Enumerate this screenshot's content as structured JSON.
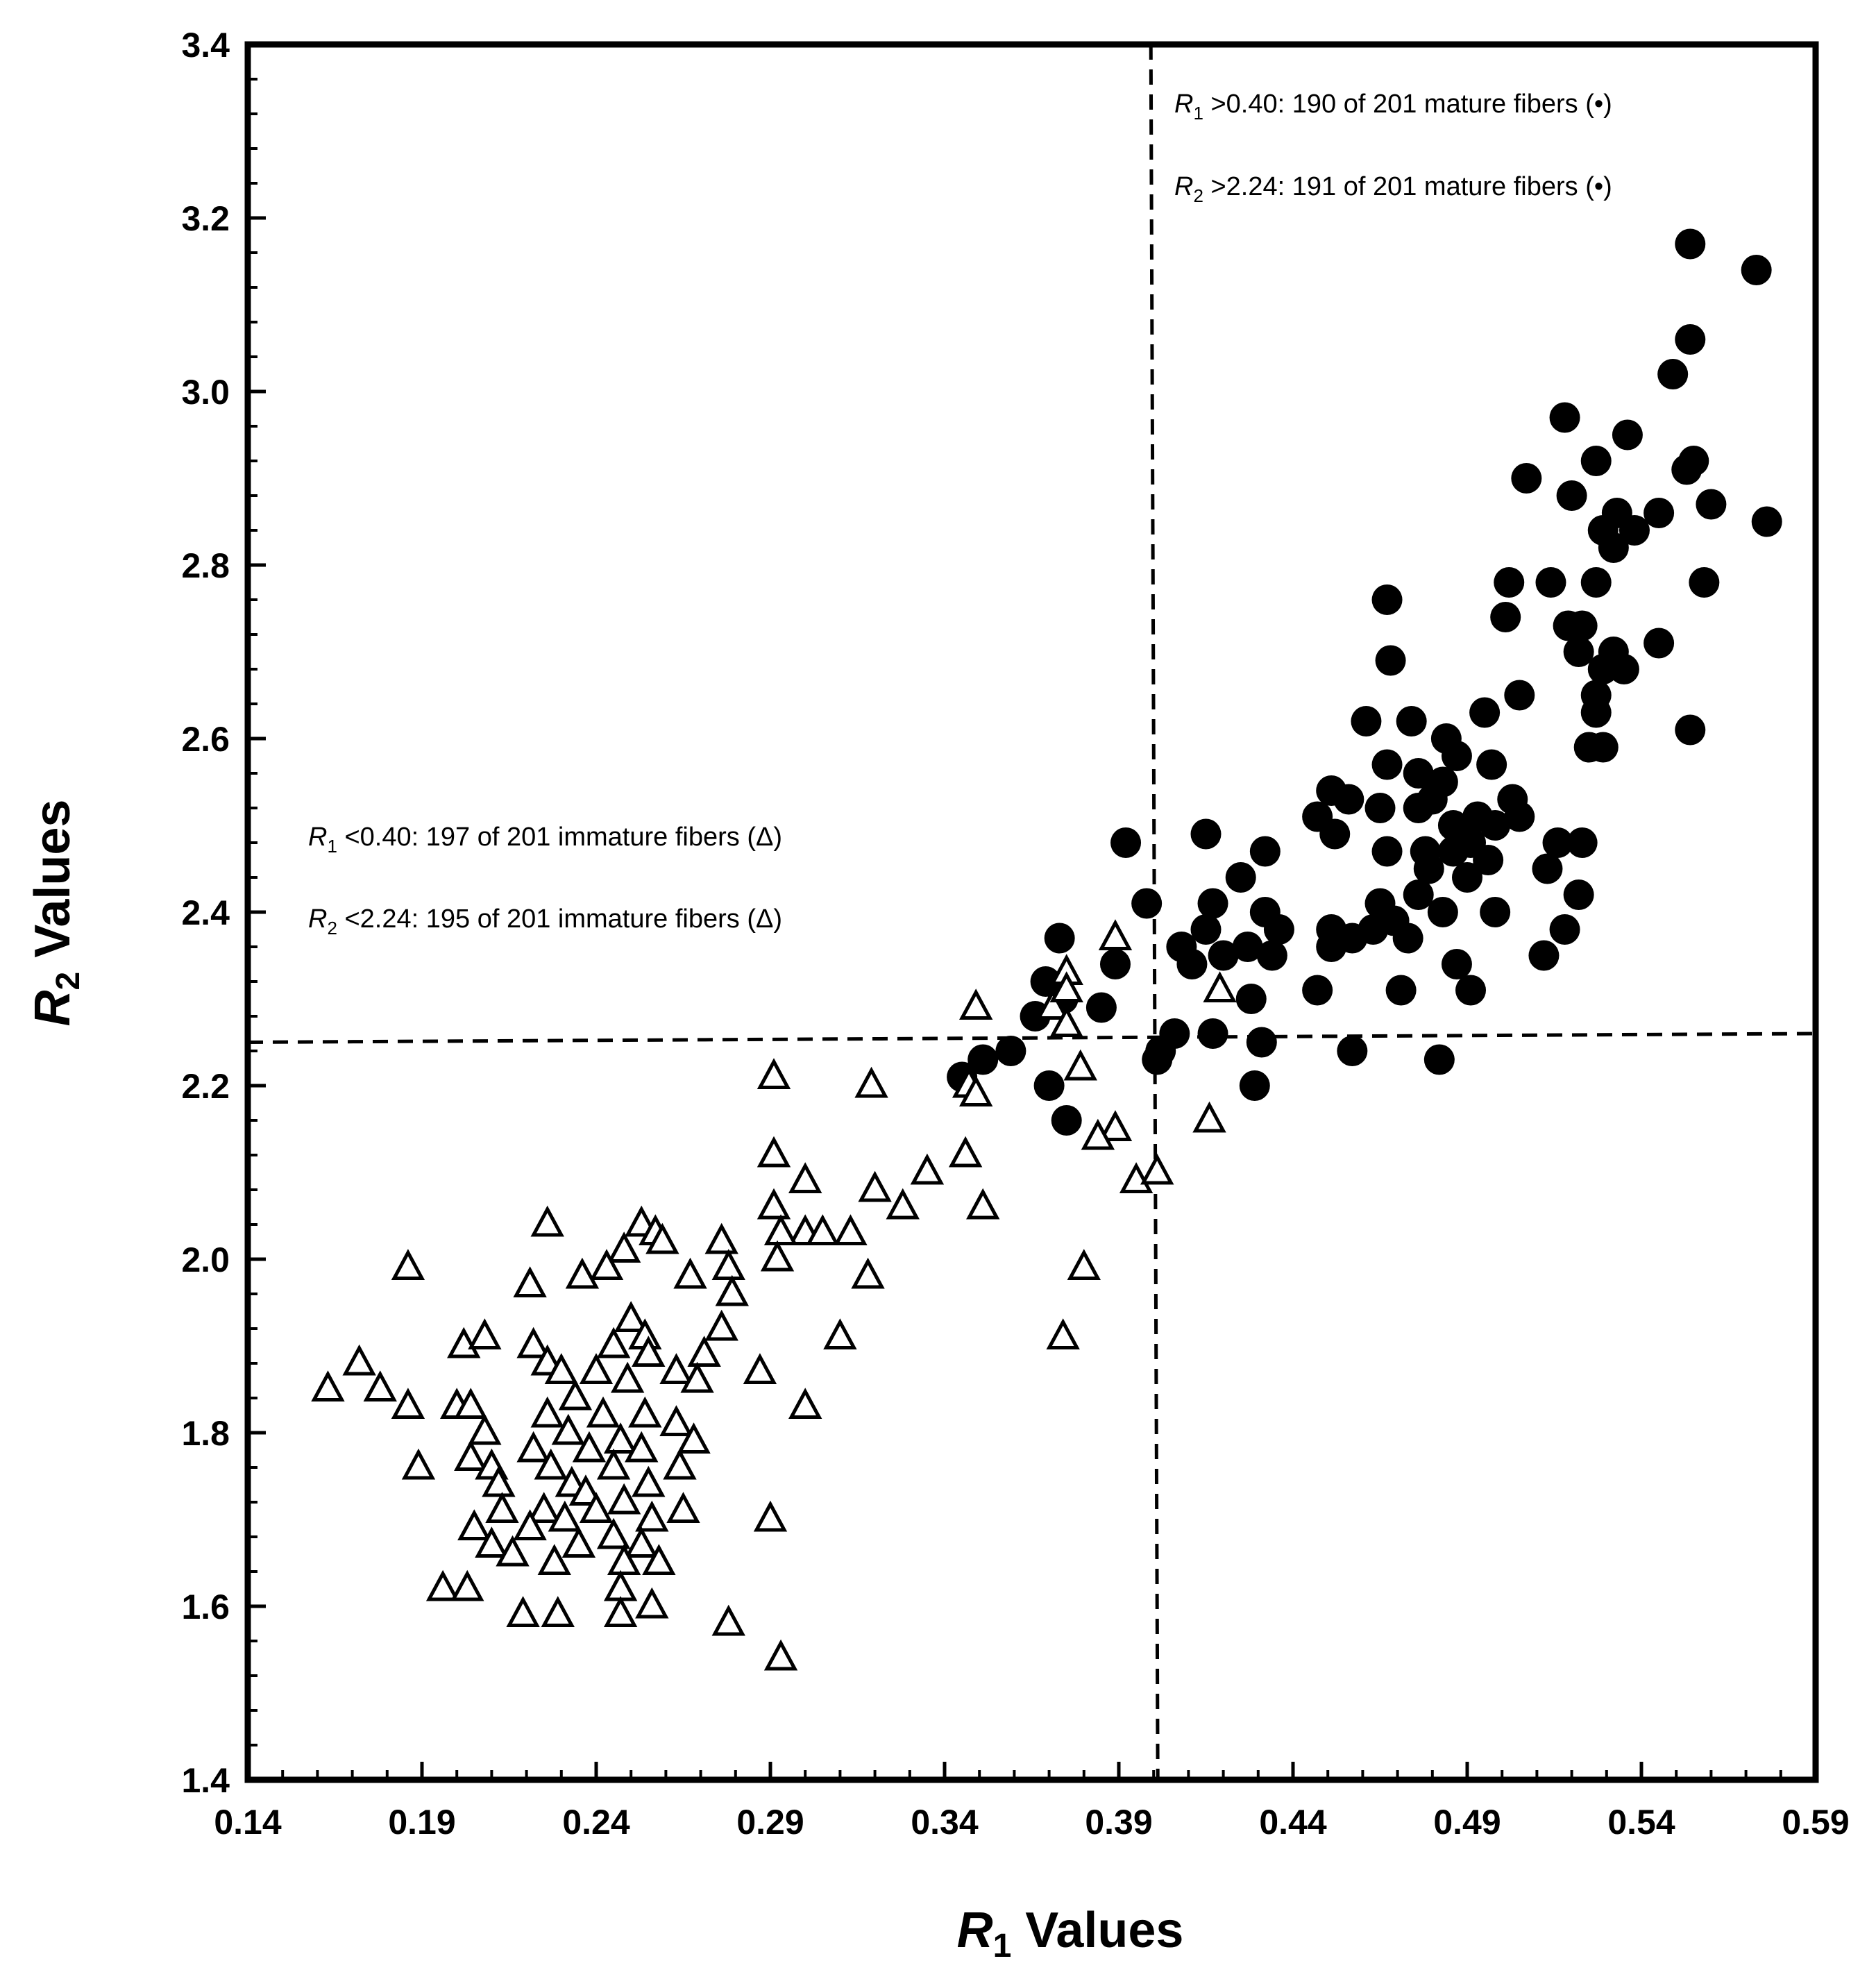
{
  "chart_data": {
    "type": "scatter",
    "title": "",
    "xlabel": {
      "var": "R",
      "sub": "1",
      "rest": " Values"
    },
    "ylabel": {
      "var": "R",
      "sub": "2",
      "rest": " Values"
    },
    "xlim": [
      0.14,
      0.59
    ],
    "ylim": [
      1.4,
      3.4
    ],
    "xticks": [
      "0.14",
      "0.19",
      "0.24",
      "0.29",
      "0.34",
      "0.39",
      "0.44",
      "0.49",
      "0.54",
      "0.59"
    ],
    "yticks": [
      "1.4",
      "1.6",
      "1.8",
      "2.0",
      "2.2",
      "2.4",
      "2.6",
      "2.8",
      "3.0",
      "3.2",
      "3.4"
    ],
    "thresholds": {
      "vertical": {
        "x": 0.4,
        "y_from": 1.4,
        "y_to": 3.4
      },
      "horizontal": {
        "x_from": 0.14,
        "x_to": 0.59,
        "y_start": 2.25,
        "y_end": 2.26
      }
    },
    "annotations": [
      {
        "var": "R",
        "sub": "1",
        "text": " >0.40: 190 of 201 mature fibers (•)",
        "pos": "top-right"
      },
      {
        "var": "R",
        "sub": "2",
        "text": " >2.24: 191 of 201 mature fibers (•)",
        "pos": "top-right"
      },
      {
        "var": "R",
        "sub": "1",
        "text": " <0.40: 197 of 201 immature fibers (Δ)",
        "pos": "middle-left"
      },
      {
        "var": "R",
        "sub": "2",
        "text": " <2.24: 195 of 201 immature fibers (Δ)",
        "pos": "middle-left"
      }
    ],
    "series": [
      {
        "name": "mature fibers",
        "marker": "filled-circle",
        "points": [
          [
            0.554,
            3.17
          ],
          [
            0.573,
            3.14
          ],
          [
            0.554,
            3.06
          ],
          [
            0.549,
            3.02
          ],
          [
            0.518,
            2.97
          ],
          [
            0.536,
            2.95
          ],
          [
            0.527,
            2.92
          ],
          [
            0.555,
            2.92
          ],
          [
            0.553,
            2.91
          ],
          [
            0.507,
            2.9
          ],
          [
            0.52,
            2.88
          ],
          [
            0.56,
            2.87
          ],
          [
            0.576,
            2.85
          ],
          [
            0.533,
            2.86
          ],
          [
            0.545,
            2.86
          ],
          [
            0.538,
            2.84
          ],
          [
            0.529,
            2.84
          ],
          [
            0.532,
            2.82
          ],
          [
            0.502,
            2.78
          ],
          [
            0.514,
            2.78
          ],
          [
            0.527,
            2.78
          ],
          [
            0.558,
            2.78
          ],
          [
            0.467,
            2.76
          ],
          [
            0.501,
            2.74
          ],
          [
            0.519,
            2.73
          ],
          [
            0.523,
            2.73
          ],
          [
            0.522,
            2.7
          ],
          [
            0.532,
            2.7
          ],
          [
            0.545,
            2.71
          ],
          [
            0.529,
            2.68
          ],
          [
            0.535,
            2.68
          ],
          [
            0.468,
            2.69
          ],
          [
            0.527,
            2.65
          ],
          [
            0.505,
            2.65
          ],
          [
            0.495,
            2.63
          ],
          [
            0.474,
            2.62
          ],
          [
            0.461,
            2.62
          ],
          [
            0.527,
            2.63
          ],
          [
            0.484,
            2.6
          ],
          [
            0.525,
            2.59
          ],
          [
            0.529,
            2.59
          ],
          [
            0.554,
            2.61
          ],
          [
            0.467,
            2.57
          ],
          [
            0.487,
            2.58
          ],
          [
            0.476,
            2.56
          ],
          [
            0.497,
            2.57
          ],
          [
            0.483,
            2.55
          ],
          [
            0.451,
            2.54
          ],
          [
            0.456,
            2.53
          ],
          [
            0.48,
            2.53
          ],
          [
            0.503,
            2.53
          ],
          [
            0.447,
            2.51
          ],
          [
            0.465,
            2.52
          ],
          [
            0.476,
            2.52
          ],
          [
            0.493,
            2.51
          ],
          [
            0.498,
            2.5
          ],
          [
            0.505,
            2.51
          ],
          [
            0.452,
            2.49
          ],
          [
            0.486,
            2.5
          ],
          [
            0.415,
            2.49
          ],
          [
            0.392,
            2.48
          ],
          [
            0.491,
            2.48
          ],
          [
            0.516,
            2.48
          ],
          [
            0.523,
            2.48
          ],
          [
            0.467,
            2.47
          ],
          [
            0.478,
            2.47
          ],
          [
            0.486,
            2.47
          ],
          [
            0.432,
            2.47
          ],
          [
            0.496,
            2.46
          ],
          [
            0.479,
            2.45
          ],
          [
            0.513,
            2.45
          ],
          [
            0.49,
            2.44
          ],
          [
            0.425,
            2.44
          ],
          [
            0.476,
            2.42
          ],
          [
            0.398,
            2.41
          ],
          [
            0.465,
            2.41
          ],
          [
            0.522,
            2.42
          ],
          [
            0.417,
            2.41
          ],
          [
            0.483,
            2.4
          ],
          [
            0.498,
            2.4
          ],
          [
            0.469,
            2.39
          ],
          [
            0.432,
            2.4
          ],
          [
            0.451,
            2.38
          ],
          [
            0.463,
            2.38
          ],
          [
            0.415,
            2.38
          ],
          [
            0.518,
            2.38
          ],
          [
            0.436,
            2.38
          ],
          [
            0.408,
            2.36
          ],
          [
            0.373,
            2.37
          ],
          [
            0.427,
            2.36
          ],
          [
            0.451,
            2.36
          ],
          [
            0.457,
            2.37
          ],
          [
            0.473,
            2.37
          ],
          [
            0.42,
            2.35
          ],
          [
            0.411,
            2.34
          ],
          [
            0.487,
            2.34
          ],
          [
            0.434,
            2.35
          ],
          [
            0.512,
            2.35
          ],
          [
            0.389,
            2.34
          ],
          [
            0.369,
            2.32
          ],
          [
            0.374,
            2.3
          ],
          [
            0.471,
            2.31
          ],
          [
            0.447,
            2.31
          ],
          [
            0.491,
            2.31
          ],
          [
            0.428,
            2.3
          ],
          [
            0.385,
            2.29
          ],
          [
            0.366,
            2.28
          ],
          [
            0.406,
            2.26
          ],
          [
            0.417,
            2.26
          ],
          [
            0.431,
            2.25
          ],
          [
            0.402,
            2.24
          ],
          [
            0.359,
            2.24
          ],
          [
            0.351,
            2.23
          ],
          [
            0.457,
            2.24
          ],
          [
            0.482,
            2.23
          ],
          [
            0.401,
            2.23
          ],
          [
            0.345,
            2.21
          ],
          [
            0.37,
            2.2
          ],
          [
            0.429,
            2.2
          ],
          [
            0.375,
            2.16
          ]
        ]
      },
      {
        "name": "immature fibers",
        "marker": "open-triangle",
        "points": [
          [
            0.389,
            2.37
          ],
          [
            0.375,
            2.33
          ],
          [
            0.371,
            2.29
          ],
          [
            0.375,
            2.31
          ],
          [
            0.349,
            2.29
          ],
          [
            0.419,
            2.31
          ],
          [
            0.375,
            2.27
          ],
          [
            0.379,
            2.22
          ],
          [
            0.347,
            2.2
          ],
          [
            0.349,
            2.19
          ],
          [
            0.291,
            2.21
          ],
          [
            0.319,
            2.2
          ],
          [
            0.416,
            2.16
          ],
          [
            0.389,
            2.15
          ],
          [
            0.384,
            2.14
          ],
          [
            0.346,
            2.12
          ],
          [
            0.291,
            2.12
          ],
          [
            0.335,
            2.1
          ],
          [
            0.3,
            2.09
          ],
          [
            0.32,
            2.08
          ],
          [
            0.395,
            2.09
          ],
          [
            0.401,
            2.1
          ],
          [
            0.291,
            2.06
          ],
          [
            0.328,
            2.06
          ],
          [
            0.351,
            2.06
          ],
          [
            0.226,
            2.04
          ],
          [
            0.253,
            2.04
          ],
          [
            0.257,
            2.03
          ],
          [
            0.3,
            2.03
          ],
          [
            0.305,
            2.03
          ],
          [
            0.313,
            2.03
          ],
          [
            0.293,
            2.03
          ],
          [
            0.276,
            2.02
          ],
          [
            0.259,
            2.02
          ],
          [
            0.248,
            2.01
          ],
          [
            0.243,
            1.99
          ],
          [
            0.292,
            2.0
          ],
          [
            0.278,
            1.99
          ],
          [
            0.38,
            1.99
          ],
          [
            0.186,
            1.99
          ],
          [
            0.236,
            1.98
          ],
          [
            0.267,
            1.98
          ],
          [
            0.318,
            1.98
          ],
          [
            0.221,
            1.97
          ],
          [
            0.279,
            1.96
          ],
          [
            0.25,
            1.93
          ],
          [
            0.276,
            1.92
          ],
          [
            0.202,
            1.9
          ],
          [
            0.208,
            1.91
          ],
          [
            0.222,
            1.9
          ],
          [
            0.254,
            1.91
          ],
          [
            0.31,
            1.91
          ],
          [
            0.374,
            1.91
          ],
          [
            0.245,
            1.9
          ],
          [
            0.226,
            1.88
          ],
          [
            0.24,
            1.87
          ],
          [
            0.255,
            1.89
          ],
          [
            0.271,
            1.89
          ],
          [
            0.172,
            1.88
          ],
          [
            0.23,
            1.87
          ],
          [
            0.263,
            1.87
          ],
          [
            0.287,
            1.87
          ],
          [
            0.269,
            1.86
          ],
          [
            0.249,
            1.86
          ],
          [
            0.163,
            1.85
          ],
          [
            0.178,
            1.85
          ],
          [
            0.234,
            1.84
          ],
          [
            0.3,
            1.83
          ],
          [
            0.2,
            1.83
          ],
          [
            0.204,
            1.83
          ],
          [
            0.186,
            1.83
          ],
          [
            0.226,
            1.82
          ],
          [
            0.242,
            1.82
          ],
          [
            0.254,
            1.82
          ],
          [
            0.263,
            1.81
          ],
          [
            0.208,
            1.8
          ],
          [
            0.232,
            1.8
          ],
          [
            0.247,
            1.79
          ],
          [
            0.268,
            1.79
          ],
          [
            0.222,
            1.78
          ],
          [
            0.238,
            1.78
          ],
          [
            0.253,
            1.78
          ],
          [
            0.204,
            1.77
          ],
          [
            0.21,
            1.76
          ],
          [
            0.189,
            1.76
          ],
          [
            0.227,
            1.76
          ],
          [
            0.245,
            1.76
          ],
          [
            0.264,
            1.76
          ],
          [
            0.233,
            1.74
          ],
          [
            0.212,
            1.74
          ],
          [
            0.255,
            1.74
          ],
          [
            0.237,
            1.73
          ],
          [
            0.248,
            1.72
          ],
          [
            0.225,
            1.71
          ],
          [
            0.213,
            1.71
          ],
          [
            0.24,
            1.71
          ],
          [
            0.256,
            1.7
          ],
          [
            0.29,
            1.7
          ],
          [
            0.265,
            1.71
          ],
          [
            0.231,
            1.7
          ],
          [
            0.205,
            1.69
          ],
          [
            0.221,
            1.69
          ],
          [
            0.245,
            1.68
          ],
          [
            0.21,
            1.67
          ],
          [
            0.235,
            1.67
          ],
          [
            0.253,
            1.67
          ],
          [
            0.216,
            1.66
          ],
          [
            0.228,
            1.65
          ],
          [
            0.248,
            1.65
          ],
          [
            0.258,
            1.65
          ],
          [
            0.196,
            1.62
          ],
          [
            0.203,
            1.62
          ],
          [
            0.247,
            1.62
          ],
          [
            0.256,
            1.6
          ],
          [
            0.219,
            1.59
          ],
          [
            0.229,
            1.59
          ],
          [
            0.247,
            1.59
          ],
          [
            0.278,
            1.58
          ],
          [
            0.293,
            1.54
          ]
        ]
      }
    ]
  }
}
